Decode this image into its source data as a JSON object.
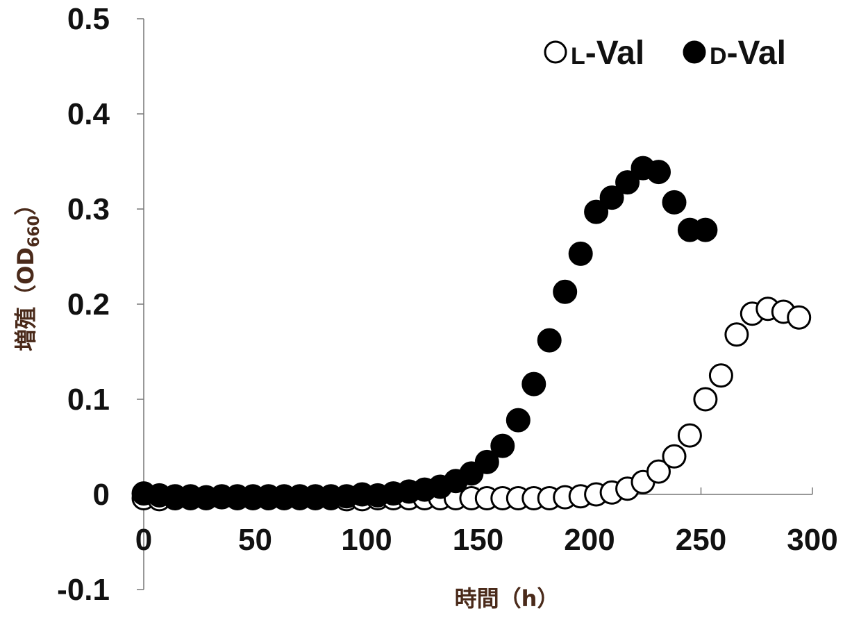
{
  "chart_data": {
    "type": "scatter",
    "title": "",
    "xlabel": "時間（h）",
    "ylabel": "増殖（OD660）",
    "ylabel_main": "増殖（OD",
    "ylabel_sub": "660",
    "ylabel_end": "）",
    "xlim": [
      0,
      300
    ],
    "ylim": [
      -0.1,
      0.5
    ],
    "x_ticks": [
      0,
      50,
      100,
      150,
      200,
      250,
      300
    ],
    "y_ticks": [
      -0.1,
      0,
      0.1,
      0.2,
      0.3,
      0.4,
      0.5
    ],
    "x_tick_labels": [
      "0",
      "50",
      "100",
      "150",
      "200",
      "250",
      "300"
    ],
    "y_tick_labels": [
      "-0.1",
      "0",
      "0.1",
      "0.2",
      "0.3",
      "0.4",
      "0.5"
    ],
    "grid": false,
    "legend_position": "top-right",
    "series": [
      {
        "name": "L-Val",
        "legend_prefix": "L",
        "legend_suffix": "-Val",
        "marker": "open-circle",
        "x": [
          0,
          7,
          14,
          21,
          28,
          35,
          42,
          49,
          56,
          63,
          70,
          77,
          84,
          91,
          98,
          105,
          112,
          119,
          126,
          133,
          140,
          147,
          154,
          161,
          168,
          175,
          182,
          189,
          196,
          203,
          210,
          217,
          224,
          231,
          238,
          245,
          252,
          259,
          266,
          273,
          280,
          287,
          294
        ],
        "y": [
          -0.004,
          -0.005,
          -0.004,
          -0.004,
          -0.004,
          -0.003,
          -0.004,
          -0.004,
          -0.004,
          -0.004,
          -0.004,
          -0.004,
          -0.004,
          -0.005,
          -0.005,
          -0.004,
          -0.004,
          -0.004,
          -0.004,
          -0.004,
          -0.004,
          -0.004,
          -0.004,
          -0.004,
          -0.004,
          -0.004,
          -0.004,
          -0.003,
          -0.002,
          0.0,
          0.002,
          0.006,
          0.013,
          0.024,
          0.04,
          0.062,
          0.1,
          0.125,
          0.168,
          0.19,
          0.195,
          0.192,
          0.186
        ]
      },
      {
        "name": "D-Val",
        "legend_prefix": "D",
        "legend_suffix": "-Val",
        "marker": "filled-circle",
        "x": [
          0,
          7,
          14,
          21,
          28,
          35,
          42,
          49,
          56,
          63,
          70,
          77,
          84,
          91,
          98,
          105,
          112,
          119,
          126,
          133,
          140,
          147,
          154,
          161,
          168,
          175,
          182,
          189,
          196,
          203,
          210,
          217,
          224,
          231,
          238,
          245,
          252
        ],
        "y": [
          0.001,
          -0.001,
          -0.002,
          -0.002,
          -0.003,
          -0.002,
          -0.002,
          -0.002,
          -0.002,
          -0.002,
          -0.002,
          -0.002,
          -0.002,
          -0.002,
          0.0,
          -0.001,
          0.001,
          0.003,
          0.005,
          0.008,
          0.014,
          0.022,
          0.034,
          0.051,
          0.078,
          0.116,
          0.162,
          0.213,
          0.253,
          0.297,
          0.312,
          0.328,
          0.343,
          0.339,
          0.307,
          0.278,
          0.278
        ]
      }
    ]
  }
}
